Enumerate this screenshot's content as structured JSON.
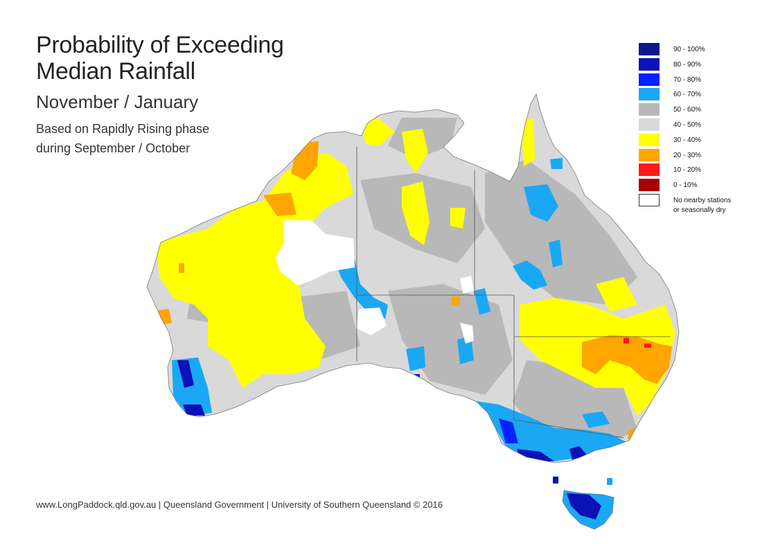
{
  "title": {
    "line1": "Probability of Exceeding",
    "line2": "Median Rainfall",
    "period": "November / January",
    "phase_line1": "Based on Rapidly Rising phase",
    "phase_line2": "during September / October"
  },
  "legend": [
    {
      "label": "90 - 100%",
      "color": "#0a1a8c"
    },
    {
      "label": "80 - 90%",
      "color": "#0a12b8"
    },
    {
      "label": "70 - 80%",
      "color": "#0022ff"
    },
    {
      "label": "60 - 70%",
      "color": "#1aa8f5"
    },
    {
      "label": "50 - 60%",
      "color": "#b8b8b8"
    },
    {
      "label": "40 - 50%",
      "color": "#d9d9d9"
    },
    {
      "label": "30 - 40%",
      "color": "#ffff00"
    },
    {
      "label": "20 - 30%",
      "color": "#ffa500"
    },
    {
      "label": "10 - 20%",
      "color": "#ff1a1a"
    },
    {
      "label": "0 - 10%",
      "color": "#a80000"
    },
    {
      "label": "No nearby stations\nor seasonally dry",
      "label_line1": "No nearby stations",
      "label_line2": "or seasonally dry",
      "color": "#ffffff"
    }
  ],
  "credit": "www.LongPaddock.qld.gov.au | Queensland Government | University of Southern Queensland © 2016"
}
